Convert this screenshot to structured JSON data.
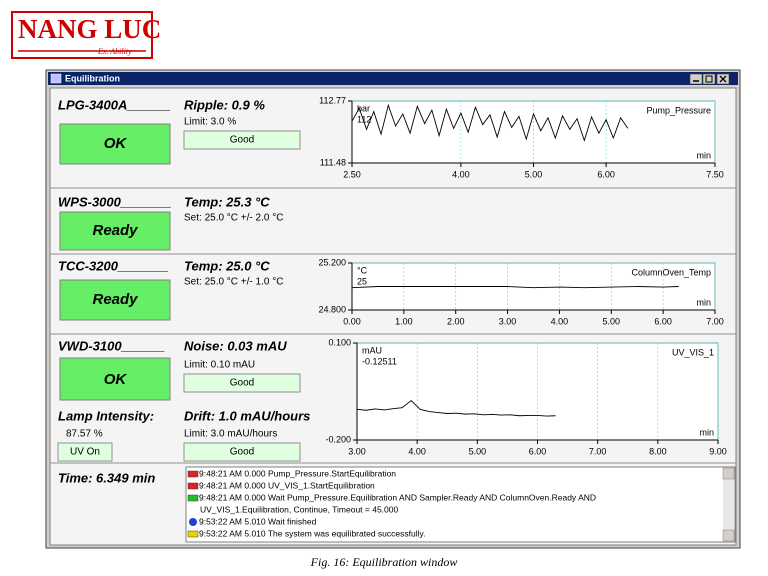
{
  "logo": {
    "title": "NANG LUC",
    "subtitle": "Ex. Ability"
  },
  "window": {
    "title": "Equilibration"
  },
  "modules": [
    {
      "name": "LPG-3400A______",
      "status": "OK",
      "param": "Ripple: 0.9 %",
      "limit": "Limit: 3.0 %",
      "assessment": "Good"
    },
    {
      "name": "WPS-3000_______",
      "status": "Ready",
      "param": "Temp: 25.3 °C",
      "limit": "Set: 25.0 °C  +/- 2.0 °C"
    },
    {
      "name": "TCC-3200_______",
      "status": "Ready",
      "param": "Temp: 25.0 °C",
      "limit": "Set: 25.0 °C  +/- 1.0 °C"
    },
    {
      "name": "VWD-3100______",
      "status": "OK",
      "param": "Noise: 0.03 mAU",
      "limit": "Limit: 0.10 mAU",
      "assessment": "Good",
      "lamp_label": "Lamp Intensity:",
      "lamp_value": "87.57 %",
      "lamp_state": "UV On",
      "drift": "Drift: 1.0 mAU/hours",
      "drift_limit": "Limit: 3.0 mAU/hours",
      "drift_assessment": "Good"
    }
  ],
  "time": "Time: 6.349 min",
  "log": [
    {
      "icon": "red",
      "text": "9:48:21 AM 0.000 Pump_Pressure.StartEquilibration"
    },
    {
      "icon": "red",
      "text": "9:48:21 AM 0.000 UV_VIS_1.StartEquilibration"
    },
    {
      "icon": "green",
      "text": "9:48:21 AM 0.000 Wait  Pump_Pressure.Equilibration AND Sampler.Ready AND ColumnOven.Ready AND"
    },
    {
      "icon": "none",
      "text": "UV_VIS_1.Equilibration, Continue, Timeout = 45.000"
    },
    {
      "icon": "info",
      "text": "9:53:22 AM 5.010 Wait finished"
    },
    {
      "icon": "note",
      "text": "9:53:22 AM 5.010 The system was equilibrated successfully."
    }
  ],
  "caption": "Fig. 16: Equilibration window",
  "chart_data": [
    {
      "type": "line",
      "y_unit": "bar",
      "x_unit": "min",
      "readout": 112,
      "grid": true,
      "xlim": [
        2.5,
        7.5
      ],
      "ylim": [
        111.48,
        112.77
      ],
      "xticks": [
        {
          "value": 2.5,
          "label": "2.50"
        },
        {
          "value": 4,
          "label": "4.00"
        },
        {
          "value": 5,
          "label": "5.00"
        },
        {
          "value": 6,
          "label": "6.00"
        },
        {
          "value": 7.5,
          "label": "7.50"
        }
      ],
      "yticks": [
        111.48,
        112.77
      ],
      "x": [
        2.5,
        2.6,
        2.7,
        2.8,
        2.9,
        3.0,
        3.1,
        3.2,
        3.3,
        3.4,
        3.5,
        3.6,
        3.7,
        3.8,
        3.9,
        4.0,
        4.1,
        4.2,
        4.3,
        4.4,
        4.5,
        4.6,
        4.7,
        4.8,
        4.9,
        5.0,
        5.1,
        5.2,
        5.3,
        5.4,
        5.5,
        5.6,
        5.7,
        5.8,
        5.9,
        6.0,
        6.1,
        6.2,
        6.3
      ],
      "series": [
        {
          "name": "Pump_Pressure",
          "color": "#000000",
          "values": [
            112.35,
            112.62,
            112.18,
            112.55,
            112.08,
            112.68,
            112.25,
            112.5,
            112.1,
            112.66,
            112.3,
            112.58,
            112.05,
            112.6,
            112.2,
            112.52,
            112.12,
            112.64,
            112.28,
            112.48,
            112.02,
            112.55,
            112.22,
            112.45,
            111.98,
            112.5,
            112.15,
            112.42,
            112.0,
            112.46,
            112.18,
            112.4,
            111.95,
            112.44,
            112.1,
            112.38,
            112.0,
            112.42,
            112.2
          ]
        }
      ]
    },
    {
      "type": "line",
      "y_unit": "°C",
      "x_unit": "min",
      "readout": 25,
      "grid": true,
      "xlim": [
        0,
        7
      ],
      "ylim": [
        24.8,
        25.2
      ],
      "xticks": [
        {
          "value": 0,
          "label": "0.00"
        },
        {
          "value": 1,
          "label": "1.00"
        },
        {
          "value": 2,
          "label": "2.00"
        },
        {
          "value": 3,
          "label": "3.00"
        },
        {
          "value": 4,
          "label": "4.00"
        },
        {
          "value": 5,
          "label": "5.00"
        },
        {
          "value": 6,
          "label": "6.00"
        },
        {
          "value": 7,
          "label": "7.00"
        }
      ],
      "yticks": [
        {
          "value": 24.8,
          "label": "24.800"
        },
        {
          "value": 25.2,
          "label": "25.200"
        }
      ],
      "x": [
        0,
        0.5,
        1,
        1.5,
        2,
        2.5,
        3,
        3.5,
        4,
        4.5,
        5,
        5.5,
        6,
        6.3
      ],
      "series": [
        {
          "name": "ColumnOven_Temp",
          "color": "#000000",
          "values": [
            24.99,
            25.0,
            25.0,
            25.0,
            25.0,
            25.0,
            25.0,
            24.99,
            24.995,
            24.99,
            24.995,
            25.0,
            24.995,
            25.0
          ]
        }
      ]
    },
    {
      "type": "line",
      "y_unit": "mAU",
      "x_unit": "min",
      "readout": -0.12511,
      "grid": true,
      "xlim": [
        3,
        9
      ],
      "ylim": [
        -0.2,
        0.1
      ],
      "xticks": [
        {
          "value": 3,
          "label": "3.00"
        },
        {
          "value": 4,
          "label": "4.00"
        },
        {
          "value": 5,
          "label": "5.00"
        },
        {
          "value": 6,
          "label": "6.00"
        },
        {
          "value": 7,
          "label": "7.00"
        },
        {
          "value": 8,
          "label": "8.00"
        },
        {
          "value": 9,
          "label": "9.00"
        }
      ],
      "yticks": [
        {
          "value": -0.2,
          "label": "-0.200"
        },
        {
          "value": 0.1,
          "label": "0.100"
        }
      ],
      "x": [
        3.0,
        3.15,
        3.3,
        3.45,
        3.6,
        3.75,
        3.9,
        4.05,
        4.2,
        4.35,
        4.5,
        4.65,
        4.8,
        4.95,
        5.1,
        5.25,
        5.4,
        5.55,
        5.7,
        5.85,
        6.0,
        6.15,
        6.3
      ],
      "series": [
        {
          "name": "UV_VIS_1",
          "color": "#000000",
          "values": [
            -0.105,
            -0.108,
            -0.104,
            -0.107,
            -0.103,
            -0.1,
            -0.078,
            -0.105,
            -0.112,
            -0.115,
            -0.118,
            -0.117,
            -0.12,
            -0.119,
            -0.122,
            -0.121,
            -0.123,
            -0.122,
            -0.125,
            -0.124,
            -0.124,
            -0.126,
            -0.125
          ]
        }
      ]
    }
  ]
}
